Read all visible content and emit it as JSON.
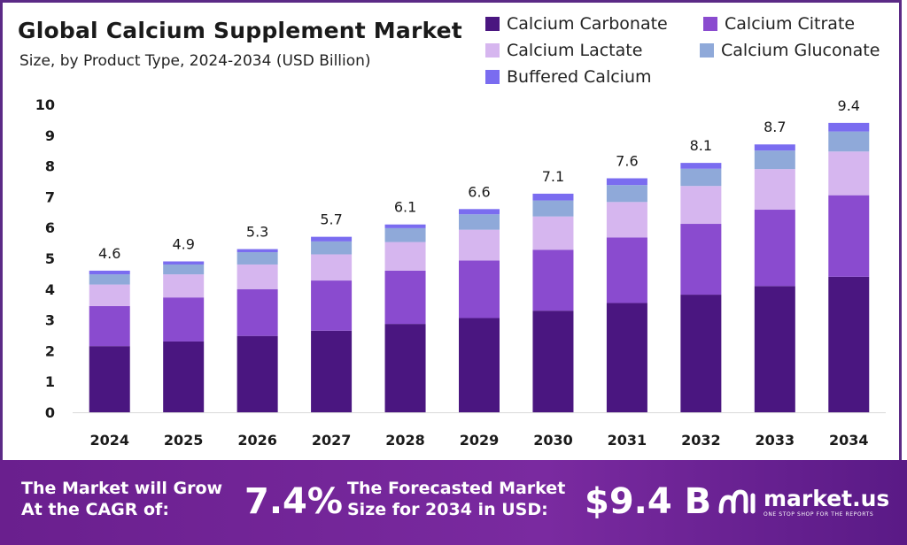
{
  "colors": {
    "accent": "#5b2a86",
    "footer": "#6a1f8e",
    "series": [
      "#4a1680",
      "#8a4bcf",
      "#d6b6ef",
      "#8fa9d9",
      "#7a6cf0"
    ]
  },
  "chart_data": {
    "type": "bar",
    "stacked": true,
    "title": "Global Calcium Supplement Market",
    "subtitle": "Size, by Product Type, 2024-2034 (USD Billion)",
    "categories": [
      "2024",
      "2025",
      "2026",
      "2027",
      "2028",
      "2029",
      "2030",
      "2031",
      "2032",
      "2033",
      "2034"
    ],
    "series": [
      {
        "name": "Calcium Carbonate",
        "values": [
          2.15,
          2.3,
          2.48,
          2.65,
          2.87,
          3.06,
          3.3,
          3.55,
          3.82,
          4.1,
          4.4
        ]
      },
      {
        "name": "Calcium Citrate",
        "values": [
          1.3,
          1.43,
          1.52,
          1.63,
          1.73,
          1.87,
          1.98,
          2.13,
          2.3,
          2.48,
          2.65
        ]
      },
      {
        "name": "Calcium Lactate",
        "values": [
          0.7,
          0.75,
          0.8,
          0.85,
          0.93,
          1.0,
          1.08,
          1.15,
          1.23,
          1.32,
          1.42
        ]
      },
      {
        "name": "Calcium Gluconate",
        "values": [
          0.33,
          0.32,
          0.4,
          0.42,
          0.45,
          0.5,
          0.52,
          0.55,
          0.56,
          0.6,
          0.65
        ]
      },
      {
        "name": "Buffered Calcium",
        "values": [
          0.12,
          0.1,
          0.1,
          0.15,
          0.12,
          0.17,
          0.22,
          0.22,
          0.19,
          0.2,
          0.28
        ]
      }
    ],
    "totals": [
      "4.6",
      "4.9",
      "5.3",
      "5.7",
      "6.1",
      "6.6",
      "7.1",
      "7.6",
      "8.1",
      "8.7",
      "9.4"
    ],
    "ylim": [
      0,
      10
    ],
    "yticks": [
      "0",
      "1",
      "2",
      "3",
      "4",
      "5",
      "6",
      "7",
      "8",
      "9",
      "10"
    ],
    "grid": false,
    "legend": "top-right"
  },
  "footer": {
    "cagr_label": "The Market will Grow At the CAGR of:",
    "cagr_value": "7.4%",
    "forecast_label": "The Forecasted Market Size for 2034 in USD:",
    "forecast_value": "$9.4 B",
    "brand_name": "market.us",
    "brand_tagline": "ONE STOP SHOP FOR THE REPORTS"
  }
}
